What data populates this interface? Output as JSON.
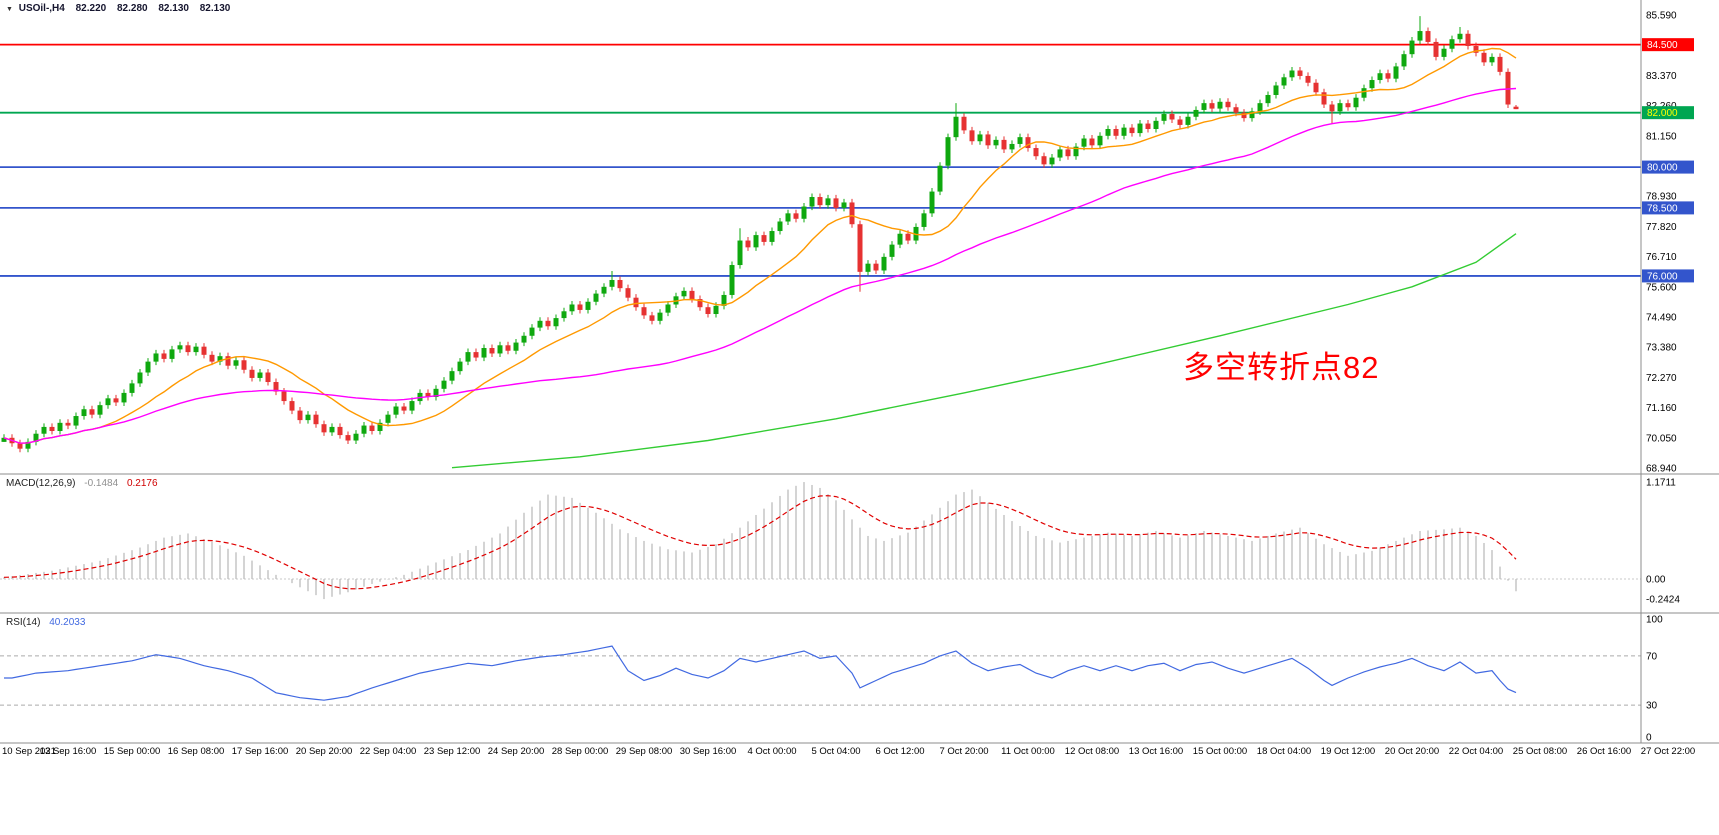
{
  "header": {
    "dropdown_icon": "▼",
    "symbol_period": "USOil-,H4",
    "open": "82.220",
    "high": "82.280",
    "low": "82.130",
    "close": "82.130"
  },
  "annotation": {
    "text": "多空转折点82",
    "color": "#FF0000"
  },
  "indicators": {
    "macd": {
      "label": "MACD(12,26,9)",
      "value": "-0.1484",
      "signal": "0.2176",
      "scale_labels": [
        "1.1711",
        "0.00",
        "-0.2424"
      ],
      "params": {
        "fast": 12,
        "slow": 26,
        "signal": 9
      }
    },
    "rsi": {
      "label": "RSI(14)",
      "value": "40.2033",
      "scale_labels": [
        "100",
        "70",
        "30",
        "0"
      ],
      "period": 14,
      "levels": [
        70,
        30
      ]
    }
  },
  "chart_data": {
    "type": "candlestick",
    "symbol": "USOil-",
    "timeframe": "H4",
    "current_ohlc": {
      "open": 82.22,
      "high": 82.28,
      "low": 82.13,
      "close": 82.13
    },
    "y_axis": {
      "min": 68.94,
      "max": 85.59,
      "tick_labels": [
        "85.590",
        "83.370",
        "82.260",
        "81.150",
        "78.930",
        "77.820",
        "76.710",
        "75.600",
        "74.490",
        "73.380",
        "72.270",
        "71.160",
        "70.050",
        "68.940"
      ],
      "tick_prices": [
        85.59,
        83.37,
        82.26,
        81.15,
        78.93,
        77.82,
        76.71,
        75.6,
        74.49,
        73.38,
        72.27,
        71.16,
        70.05,
        68.94
      ]
    },
    "x_axis": {
      "tick_labels": [
        "10 Sep 2021",
        "13 Sep 16:00",
        "15 Sep 00:00",
        "16 Sep 08:00",
        "17 Sep 16:00",
        "20 Sep 20:00",
        "22 Sep 04:00",
        "23 Sep 12:00",
        "24 Sep 20:00",
        "28 Sep 00:00",
        "29 Sep 08:00",
        "30 Sep 16:00",
        "4 Oct 00:00",
        "5 Oct 04:00",
        "6 Oct 12:00",
        "7 Oct 20:00",
        "11 Oct 00:00",
        "12 Oct 08:00",
        "13 Oct 16:00",
        "15 Oct 00:00",
        "18 Oct 04:00",
        "19 Oct 12:00",
        "20 Oct 20:00",
        "22 Oct 04:00",
        "25 Oct 08:00",
        "26 Oct 16:00",
        "27 Oct 22:00"
      ]
    },
    "closes": [
      70.05,
      69.85,
      69.65,
      69.9,
      70.2,
      70.45,
      70.3,
      70.6,
      70.5,
      70.85,
      71.1,
      70.9,
      71.25,
      71.5,
      71.35,
      71.7,
      72.05,
      72.45,
      72.85,
      73.15,
      72.95,
      73.3,
      73.45,
      73.2,
      73.4,
      73.1,
      72.85,
      73.05,
      72.7,
      72.9,
      72.55,
      72.25,
      72.45,
      72.1,
      71.75,
      71.4,
      71.05,
      70.7,
      70.9,
      70.55,
      70.25,
      70.45,
      70.15,
      69.95,
      70.2,
      70.5,
      70.3,
      70.6,
      70.9,
      71.2,
      71.05,
      71.4,
      71.7,
      71.55,
      71.85,
      72.15,
      72.5,
      72.85,
      73.2,
      73.0,
      73.35,
      73.15,
      73.45,
      73.25,
      73.55,
      73.8,
      74.1,
      74.35,
      74.15,
      74.45,
      74.7,
      74.95,
      74.75,
      75.05,
      75.35,
      75.6,
      75.85,
      75.55,
      75.2,
      74.85,
      74.55,
      74.35,
      74.65,
      74.95,
      75.25,
      75.45,
      75.15,
      74.85,
      74.6,
      74.9,
      75.3,
      76.4,
      77.3,
      77.05,
      77.5,
      77.25,
      77.65,
      78.0,
      78.3,
      78.1,
      78.55,
      78.9,
      78.6,
      78.85,
      78.5,
      78.7,
      77.9,
      76.15,
      76.45,
      76.2,
      76.7,
      77.15,
      77.55,
      77.3,
      77.8,
      78.3,
      79.1,
      80.05,
      81.1,
      81.85,
      81.35,
      80.95,
      81.2,
      80.8,
      81.0,
      80.65,
      80.85,
      81.1,
      80.7,
      80.4,
      80.1,
      80.35,
      80.65,
      80.4,
      80.75,
      81.05,
      80.8,
      81.15,
      81.4,
      81.15,
      81.45,
      81.25,
      81.6,
      81.4,
      81.7,
      81.95,
      81.75,
      81.55,
      81.85,
      82.1,
      82.35,
      82.15,
      82.4,
      82.2,
      82.0,
      81.8,
      82.05,
      82.35,
      82.65,
      83.0,
      83.3,
      83.55,
      83.35,
      83.1,
      82.75,
      82.3,
      82.05,
      82.35,
      82.2,
      82.55,
      82.9,
      83.2,
      83.45,
      83.25,
      83.7,
      84.15,
      84.65,
      85.0,
      84.6,
      84.05,
      84.35,
      84.7,
      84.9,
      84.45,
      84.2,
      83.85,
      84.05,
      83.5,
      82.3,
      82.13
    ],
    "candle_overrides": {
      "0": {
        "o": 69.9
      },
      "76": {
        "h": 76.18
      },
      "92": {
        "h": 77.75
      },
      "107": {
        "l": 75.42
      },
      "119": {
        "h": 82.35
      },
      "166": {
        "l": 81.62
      },
      "177": {
        "h": 85.55
      },
      "182": {
        "h": 85.15
      },
      "189": {
        "o": 82.22,
        "h": 82.28,
        "l": 82.13,
        "c": 82.13
      }
    },
    "horizontal_lines": [
      {
        "price": 84.5,
        "label": "84.500",
        "color": "#FF0000",
        "label_bg": "#FF0000",
        "label_color": "#FFFFFF"
      },
      {
        "price": 82.0,
        "label": "82.000",
        "color": "#00A651",
        "label_bg": "#00A651",
        "label_color": "#FFFF00"
      },
      {
        "price": 80.0,
        "label": "80.000",
        "color": "#3355CC",
        "label_bg": "#3355CC",
        "label_color": "#FFFFFF"
      },
      {
        "price": 78.5,
        "label": "78.500",
        "color": "#3355CC",
        "label_bg": "#3355CC",
        "label_color": "#FFFFFF"
      },
      {
        "price": 76.0,
        "label": "76.000",
        "color": "#3355CC",
        "label_bg": "#3355CC",
        "label_color": "#FFFFFF"
      }
    ],
    "moving_averages": [
      {
        "name": "fast",
        "color": "#FF9900",
        "type": "sma",
        "period": 13
      },
      {
        "name": "medium",
        "color": "#FF00FF",
        "type": "sma",
        "period": 50
      },
      {
        "name": "slow",
        "color": "#33CC33",
        "type": "points",
        "points": [
          [
            56,
            68.95
          ],
          [
            72,
            69.35
          ],
          [
            88,
            69.95
          ],
          [
            104,
            70.75
          ],
          [
            120,
            71.7
          ],
          [
            136,
            72.7
          ],
          [
            152,
            73.8
          ],
          [
            168,
            74.95
          ],
          [
            176,
            75.6
          ],
          [
            184,
            76.5
          ],
          [
            189,
            77.55
          ]
        ]
      }
    ],
    "macd_histogram_keypoints": [
      [
        0,
        0.02
      ],
      [
        6,
        0.1
      ],
      [
        12,
        0.22
      ],
      [
        17,
        0.38
      ],
      [
        20,
        0.5
      ],
      [
        23,
        0.55
      ],
      [
        26,
        0.45
      ],
      [
        30,
        0.28
      ],
      [
        34,
        0.05
      ],
      [
        37,
        -0.1
      ],
      [
        40,
        -0.2424
      ],
      [
        43,
        -0.16
      ],
      [
        46,
        -0.06
      ],
      [
        50,
        0.05
      ],
      [
        54,
        0.2
      ],
      [
        58,
        0.35
      ],
      [
        62,
        0.55
      ],
      [
        65,
        0.8
      ],
      [
        68,
        1.02
      ],
      [
        71,
        0.98
      ],
      [
        74,
        0.8
      ],
      [
        77,
        0.6
      ],
      [
        80,
        0.46
      ],
      [
        83,
        0.36
      ],
      [
        86,
        0.32
      ],
      [
        89,
        0.42
      ],
      [
        92,
        0.62
      ],
      [
        95,
        0.85
      ],
      [
        98,
        1.08
      ],
      [
        100,
        1.171
      ],
      [
        102,
        1.1
      ],
      [
        104,
        0.95
      ],
      [
        106,
        0.72
      ],
      [
        108,
        0.52
      ],
      [
        110,
        0.46
      ],
      [
        113,
        0.56
      ],
      [
        116,
        0.78
      ],
      [
        119,
        1.02
      ],
      [
        121,
        1.08
      ],
      [
        123,
        0.92
      ],
      [
        126,
        0.7
      ],
      [
        129,
        0.52
      ],
      [
        132,
        0.44
      ],
      [
        135,
        0.5
      ],
      [
        138,
        0.56
      ],
      [
        141,
        0.52
      ],
      [
        144,
        0.58
      ],
      [
        147,
        0.5
      ],
      [
        150,
        0.58
      ],
      [
        153,
        0.52
      ],
      [
        156,
        0.46
      ],
      [
        159,
        0.55
      ],
      [
        162,
        0.62
      ],
      [
        165,
        0.42
      ],
      [
        168,
        0.28
      ],
      [
        171,
        0.34
      ],
      [
        174,
        0.46
      ],
      [
        177,
        0.58
      ],
      [
        180,
        0.6
      ],
      [
        182,
        0.62
      ],
      [
        184,
        0.52
      ],
      [
        186,
        0.35
      ],
      [
        187,
        0.15
      ],
      [
        188,
        -0.02
      ],
      [
        189,
        -0.148
      ]
    ],
    "rsi_keypoints": [
      [
        1,
        52
      ],
      [
        4,
        56
      ],
      [
        8,
        58
      ],
      [
        12,
        62
      ],
      [
        16,
        66
      ],
      [
        19,
        71
      ],
      [
        22,
        68
      ],
      [
        25,
        62
      ],
      [
        28,
        58
      ],
      [
        31,
        52
      ],
      [
        34,
        40
      ],
      [
        37,
        36
      ],
      [
        40,
        34
      ],
      [
        43,
        37
      ],
      [
        46,
        44
      ],
      [
        49,
        50
      ],
      [
        52,
        56
      ],
      [
        55,
        60
      ],
      [
        58,
        64
      ],
      [
        61,
        62
      ],
      [
        64,
        66
      ],
      [
        67,
        69
      ],
      [
        70,
        71
      ],
      [
        73,
        74
      ],
      [
        76,
        78
      ],
      [
        78,
        58
      ],
      [
        80,
        50
      ],
      [
        82,
        54
      ],
      [
        84,
        60
      ],
      [
        86,
        55
      ],
      [
        88,
        52
      ],
      [
        90,
        58
      ],
      [
        92,
        68
      ],
      [
        94,
        65
      ],
      [
        96,
        68
      ],
      [
        98,
        71
      ],
      [
        100,
        74
      ],
      [
        102,
        68
      ],
      [
        104,
        70
      ],
      [
        106,
        56
      ],
      [
        107,
        44
      ],
      [
        109,
        50
      ],
      [
        111,
        56
      ],
      [
        113,
        60
      ],
      [
        115,
        64
      ],
      [
        117,
        70
      ],
      [
        119,
        74
      ],
      [
        121,
        64
      ],
      [
        123,
        58
      ],
      [
        125,
        61
      ],
      [
        127,
        63
      ],
      [
        129,
        56
      ],
      [
        131,
        52
      ],
      [
        133,
        58
      ],
      [
        135,
        62
      ],
      [
        137,
        58
      ],
      [
        139,
        62
      ],
      [
        141,
        58
      ],
      [
        143,
        62
      ],
      [
        145,
        64
      ],
      [
        147,
        58
      ],
      [
        149,
        63
      ],
      [
        151,
        65
      ],
      [
        153,
        60
      ],
      [
        155,
        56
      ],
      [
        157,
        60
      ],
      [
        159,
        64
      ],
      [
        161,
        68
      ],
      [
        163,
        60
      ],
      [
        165,
        50
      ],
      [
        166,
        46
      ],
      [
        168,
        52
      ],
      [
        170,
        57
      ],
      [
        172,
        61
      ],
      [
        174,
        64
      ],
      [
        176,
        68
      ],
      [
        178,
        62
      ],
      [
        180,
        58
      ],
      [
        182,
        65
      ],
      [
        184,
        56
      ],
      [
        186,
        58
      ],
      [
        187,
        50
      ],
      [
        188,
        43
      ],
      [
        189,
        40.2
      ]
    ],
    "colors": {
      "up": "#0FA80F",
      "down": "#E63232",
      "macd_hist": "#B8B8B8",
      "macd_signal": "#E00000",
      "rsi": "#4169E1",
      "grid": "#8C8C8C"
    }
  }
}
